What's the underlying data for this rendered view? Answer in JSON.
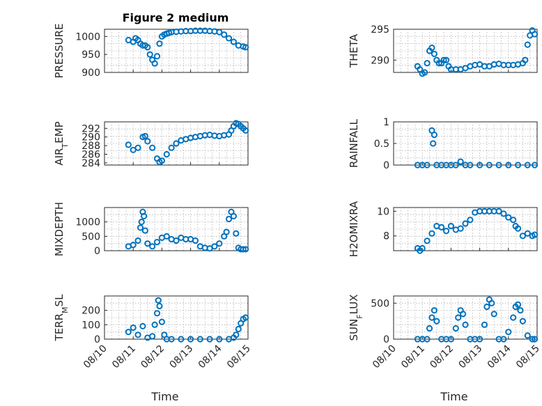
{
  "figure": {
    "title": "Figure 2 medium",
    "marker_color": "#0072BD",
    "xlabel": "Time",
    "date_ticks": [
      "08/10",
      "08/11",
      "08/12",
      "08/13",
      "08/14",
      "08/15"
    ]
  },
  "chart_data": [
    {
      "type": "scatter",
      "ylabel": "PRESSURE",
      "xlim": [
        "08/10",
        "08/15"
      ],
      "ylim": [
        900,
        1020
      ],
      "yticks": [
        900,
        950,
        1000
      ],
      "x_dates": [
        "08/10 20:00",
        "08/11 00:00",
        "08/11 02:00",
        "08/11 04:00",
        "08/11 06:00",
        "08/11 08:00",
        "08/11 10:00",
        "08/11 12:00",
        "08/11 14:00",
        "08/11 16:00",
        "08/11 18:00",
        "08/11 20:00",
        "08/11 22:00",
        "08/12 00:00",
        "08/12 02:00",
        "08/12 04:00",
        "08/12 06:00",
        "08/12 08:00",
        "08/12 12:00",
        "08/12 16:00",
        "08/12 20:00",
        "08/13 00:00",
        "08/13 04:00",
        "08/13 08:00",
        "08/13 12:00",
        "08/13 16:00",
        "08/13 20:00",
        "08/14 00:00",
        "08/14 04:00",
        "08/14 08:00",
        "08/14 12:00",
        "08/14 16:00",
        "08/14 20:00",
        "08/14 22:00"
      ],
      "values": [
        990,
        985,
        995,
        990,
        980,
        975,
        975,
        970,
        950,
        935,
        925,
        945,
        980,
        1000,
        1005,
        1008,
        1010,
        1012,
        1013,
        1014,
        1015,
        1015,
        1016,
        1016,
        1016,
        1015,
        1014,
        1012,
        1005,
        995,
        985,
        975,
        972,
        970
      ]
    },
    {
      "type": "scatter",
      "ylabel": "THETA",
      "xlim": [
        "08/10",
        "08/15"
      ],
      "ylim": [
        288,
        295
      ],
      "yticks": [
        290,
        295
      ],
      "x_dates": [
        "08/10 20:00",
        "08/10 22:00",
        "08/11 00:00",
        "08/11 02:00",
        "08/11 04:00",
        "08/11 06:00",
        "08/11 08:00",
        "08/11 10:00",
        "08/11 12:00",
        "08/11 14:00",
        "08/11 16:00",
        "08/11 18:00",
        "08/11 20:00",
        "08/11 22:00",
        "08/12 00:00",
        "08/12 04:00",
        "08/12 08:00",
        "08/12 12:00",
        "08/12 16:00",
        "08/12 20:00",
        "08/13 00:00",
        "08/13 04:00",
        "08/13 08:00",
        "08/13 12:00",
        "08/13 16:00",
        "08/13 20:00",
        "08/14 00:00",
        "08/14 04:00",
        "08/14 08:00",
        "08/14 12:00",
        "08/14 14:00",
        "08/14 16:00",
        "08/14 18:00",
        "08/14 20:00",
        "08/14 22:00"
      ],
      "values": [
        289.0,
        288.5,
        287.8,
        288.0,
        289.5,
        291.5,
        292.0,
        291.0,
        290.0,
        289.5,
        289.5,
        290.0,
        290.0,
        289.0,
        288.5,
        288.5,
        288.5,
        288.7,
        289.0,
        289.2,
        289.3,
        289.0,
        289.0,
        289.3,
        289.4,
        289.2,
        289.2,
        289.2,
        289.3,
        289.5,
        290.0,
        292.5,
        294.0,
        294.8,
        294.2
      ]
    },
    {
      "type": "scatter",
      "ylabel": "AIR_TEMP",
      "xlim": [
        "08/10",
        "08/15"
      ],
      "ylim": [
        283.5,
        293.5
      ],
      "yticks": [
        284,
        286,
        288,
        290,
        292
      ],
      "x_dates": [
        "08/10 20:00",
        "08/11 00:00",
        "08/11 04:00",
        "08/11 08:00",
        "08/11 10:00",
        "08/11 12:00",
        "08/11 16:00",
        "08/11 20:00",
        "08/11 22:00",
        "08/12 00:00",
        "08/12 04:00",
        "08/12 08:00",
        "08/12 12:00",
        "08/12 16:00",
        "08/12 20:00",
        "08/13 00:00",
        "08/13 04:00",
        "08/13 08:00",
        "08/13 12:00",
        "08/13 16:00",
        "08/13 20:00",
        "08/14 00:00",
        "08/14 04:00",
        "08/14 08:00",
        "08/14 10:00",
        "08/14 12:00",
        "08/14 14:00",
        "08/14 16:00",
        "08/14 18:00",
        "08/14 20:00",
        "08/14 22:00"
      ],
      "values": [
        288.2,
        287.0,
        287.5,
        290.0,
        290.2,
        289.0,
        287.5,
        285.0,
        284.2,
        284.5,
        286.0,
        287.5,
        288.5,
        289.2,
        289.5,
        289.8,
        290.0,
        290.2,
        290.4,
        290.5,
        290.3,
        290.2,
        290.4,
        290.6,
        291.5,
        292.5,
        293.2,
        293.0,
        292.5,
        292.0,
        291.5
      ]
    },
    {
      "type": "scatter",
      "ylabel": "RAINFALL",
      "xlim": [
        "08/10",
        "08/15"
      ],
      "ylim": [
        0,
        1
      ],
      "yticks": [
        0,
        0.5,
        1
      ],
      "x_dates": [
        "08/10 20:00",
        "08/11 00:00",
        "08/11 04:00",
        "08/11 08:00",
        "08/11 09:00",
        "08/11 10:00",
        "08/11 12:00",
        "08/11 16:00",
        "08/11 20:00",
        "08/12 00:00",
        "08/12 04:00",
        "08/12 08:00",
        "08/12 12:00",
        "08/12 16:00",
        "08/13 00:00",
        "08/13 08:00",
        "08/13 16:00",
        "08/14 00:00",
        "08/14 08:00",
        "08/14 16:00",
        "08/14 22:00"
      ],
      "values": [
        0,
        0,
        0,
        0.8,
        0.5,
        0.7,
        0,
        0,
        0,
        0,
        0,
        0.08,
        0,
        0,
        0,
        0,
        0,
        0,
        0,
        0,
        0
      ]
    },
    {
      "type": "scatter",
      "ylabel": "MIXDEPTH",
      "xlim": [
        "08/10",
        "08/15"
      ],
      "ylim": [
        0,
        1500
      ],
      "yticks": [
        0,
        500,
        1000
      ],
      "x_dates": [
        "08/10 20:00",
        "08/11 00:00",
        "08/11 04:00",
        "08/11 06:00",
        "08/11 07:00",
        "08/11 08:00",
        "08/11 09:00",
        "08/11 10:00",
        "08/11 12:00",
        "08/11 16:00",
        "08/11 20:00",
        "08/12 00:00",
        "08/12 04:00",
        "08/12 08:00",
        "08/12 12:00",
        "08/12 16:00",
        "08/12 20:00",
        "08/13 00:00",
        "08/13 04:00",
        "08/13 08:00",
        "08/13 12:00",
        "08/13 16:00",
        "08/13 20:00",
        "08/14 00:00",
        "08/14 04:00",
        "08/14 06:00",
        "08/14 08:00",
        "08/14 10:00",
        "08/14 12:00",
        "08/14 14:00",
        "08/14 16:00",
        "08/14 18:00",
        "08/14 20:00",
        "08/14 22:00"
      ],
      "values": [
        150,
        200,
        350,
        800,
        1000,
        1350,
        1200,
        700,
        250,
        150,
        300,
        450,
        500,
        400,
        350,
        450,
        400,
        400,
        350,
        150,
        100,
        80,
        150,
        250,
        500,
        650,
        1100,
        1350,
        1200,
        600,
        100,
        50,
        50,
        50
      ]
    },
    {
      "type": "scatter",
      "ylabel": "H2OMIXRA",
      "xlim": [
        "08/10",
        "08/15"
      ],
      "ylim": [
        6.8,
        10.3
      ],
      "yticks": [
        8,
        10
      ],
      "x_dates": [
        "08/10 20:00",
        "08/10 22:00",
        "08/11 00:00",
        "08/11 04:00",
        "08/11 08:00",
        "08/11 12:00",
        "08/11 16:00",
        "08/11 20:00",
        "08/12 00:00",
        "08/12 04:00",
        "08/12 08:00",
        "08/12 12:00",
        "08/12 16:00",
        "08/12 20:00",
        "08/13 00:00",
        "08/13 04:00",
        "08/13 08:00",
        "08/13 12:00",
        "08/13 16:00",
        "08/13 20:00",
        "08/14 00:00",
        "08/14 04:00",
        "08/14 06:00",
        "08/14 08:00",
        "08/14 12:00",
        "08/14 16:00",
        "08/14 20:00",
        "08/14 22:00"
      ],
      "values": [
        7.0,
        6.8,
        7.0,
        7.6,
        8.2,
        8.8,
        8.7,
        8.4,
        8.8,
        8.5,
        8.6,
        9.0,
        9.3,
        9.9,
        10.0,
        10.0,
        10.0,
        10.0,
        10.0,
        9.8,
        9.5,
        9.3,
        8.8,
        8.6,
        8.0,
        8.2,
        8.0,
        8.1
      ]
    },
    {
      "type": "scatter",
      "ylabel": "TERR_MSL",
      "xlim": [
        "08/10",
        "08/15"
      ],
      "ylim": [
        0,
        300
      ],
      "yticks": [
        0,
        100,
        200
      ],
      "x_dates": [
        "08/10 20:00",
        "08/11 00:00",
        "08/11 04:00",
        "08/11 08:00",
        "08/11 12:00",
        "08/11 16:00",
        "08/11 18:00",
        "08/11 20:00",
        "08/11 21:00",
        "08/11 22:00",
        "08/12 00:00",
        "08/12 02:00",
        "08/12 04:00",
        "08/12 08:00",
        "08/12 16:00",
        "08/13 00:00",
        "08/13 08:00",
        "08/13 16:00",
        "08/14 00:00",
        "08/14 08:00",
        "08/14 12:00",
        "08/14 14:00",
        "08/14 16:00",
        "08/14 18:00",
        "08/14 20:00",
        "08/14 22:00"
      ],
      "values": [
        50,
        80,
        30,
        90,
        10,
        20,
        100,
        180,
        270,
        230,
        120,
        30,
        0,
        0,
        0,
        0,
        0,
        0,
        0,
        0,
        10,
        30,
        70,
        110,
        140,
        150
      ]
    },
    {
      "type": "scatter",
      "ylabel": "SUN_FLUX",
      "xlim": [
        "08/10",
        "08/15"
      ],
      "ylim": [
        0,
        600
      ],
      "yticks": [
        0,
        500
      ],
      "x_dates": [
        "08/10 20:00",
        "08/11 00:00",
        "08/11 04:00",
        "08/11 06:00",
        "08/11 08:00",
        "08/11 10:00",
        "08/11 12:00",
        "08/11 16:00",
        "08/11 20:00",
        "08/12 00:00",
        "08/12 04:00",
        "08/12 06:00",
        "08/12 08:00",
        "08/12 10:00",
        "08/12 12:00",
        "08/12 16:00",
        "08/12 20:00",
        "08/13 00:00",
        "08/13 04:00",
        "08/13 06:00",
        "08/13 08:00",
        "08/13 10:00",
        "08/13 12:00",
        "08/13 16:00",
        "08/13 20:00",
        "08/14 00:00",
        "08/14 04:00",
        "08/14 06:00",
        "08/14 08:00",
        "08/14 10:00",
        "08/14 12:00",
        "08/14 16:00",
        "08/14 20:00",
        "08/14 22:00"
      ],
      "values": [
        0,
        0,
        0,
        150,
        300,
        400,
        250,
        0,
        0,
        0,
        150,
        300,
        400,
        350,
        200,
        0,
        0,
        0,
        200,
        450,
        550,
        500,
        350,
        0,
        0,
        100,
        300,
        450,
        480,
        400,
        250,
        50,
        0,
        0
      ]
    }
  ]
}
